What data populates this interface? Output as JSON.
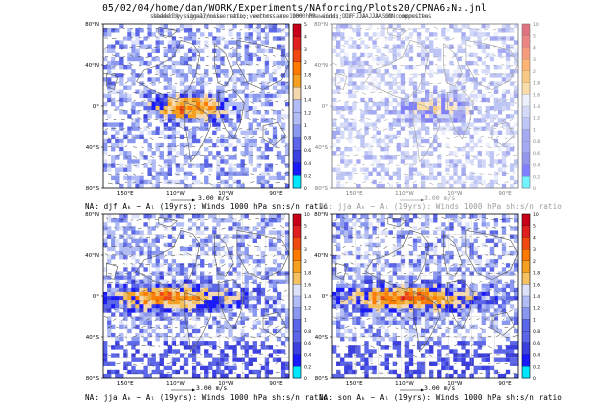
{
  "title": "05/02/04/home/dan/WORK/Experiments/NAforcing/Plots20/CPNA6₂N₂.jnl",
  "overstrike_text": "shaded by signal/noise ratio; vectors are 1000 hPa winds; DJF JJA JJA SON composites",
  "colors": {
    "low": [
      "#00e6ff",
      "#1a1aff",
      "#3d40e0",
      "#5c66e8",
      "#8a98f0",
      "#b3bdf5",
      "#dde2fa"
    ],
    "high": [
      "#f5d8b0",
      "#f5c060",
      "#f5a020",
      "#ff7a00",
      "#f04a10",
      "#e02020",
      "#c80018"
    ],
    "land": "#555555",
    "vector": "#3a3a3a"
  },
  "chart_data": [
    {
      "type": "heatmap",
      "caption": "NA: djf Aₖ − Aₗ (19yrs): Winds 1000 hPa sn:s/n ratio",
      "colorbar_ticks": [
        "5",
        "4",
        "3",
        "2",
        "1.8",
        "1.6",
        "1.4",
        "1.2",
        "1",
        "0.8",
        "0.6",
        "0.4",
        "0.2",
        "0"
      ],
      "y_ticks": [
        "80°S",
        "40°S",
        "0°",
        "40°N",
        "80°N"
      ],
      "x_ticks": [
        "150°E",
        "110°W",
        "10°W",
        "90°E"
      ],
      "vector_ref": "3.00 m/s",
      "grid": false
    },
    {
      "type": "heatmap",
      "caption": "NA: jja Aₖ − Aₗ (19yrs): Winds 1000 hPa sh:s/n ratio",
      "colorbar_ticks": [
        "10",
        "5",
        "4",
        "3",
        "2",
        "1.8",
        "1.6",
        "1.4",
        "1.2",
        "1",
        "0.8",
        "0.6",
        "0.4",
        "0.2",
        "0"
      ],
      "y_ticks": [
        "80°S",
        "40°S",
        "0°",
        "40°N",
        "80°N"
      ],
      "x_ticks": [
        "150°E",
        "110°W",
        "10°W",
        "90°E"
      ],
      "vector_ref": "3.00 m/s",
      "grid": false
    },
    {
      "type": "heatmap",
      "caption": "NA: jja Aₖ − Aₗ (19yrs): Winds 1000 hPa sh:s/n ratio",
      "colorbar_ticks": [
        "10",
        "5",
        "4",
        "3",
        "2",
        "1.8",
        "1.6",
        "1.4",
        "1.2",
        "1",
        "0.8",
        "0.6",
        "0.4",
        "0.2",
        "0"
      ],
      "y_ticks": [
        "80°S",
        "40°S",
        "0°",
        "40°N",
        "80°N"
      ],
      "x_ticks": [
        "150°E",
        "110°W",
        "10°W",
        "90°E"
      ],
      "vector_ref": "3.00 m/s",
      "grid": true
    },
    {
      "type": "heatmap",
      "caption": "NA: son Aₖ − Aₗ (19yrs): Winds 1000 hPa sh:s/n ratio",
      "colorbar_ticks": [
        "10",
        "5",
        "4",
        "3",
        "2",
        "1.8",
        "1.6",
        "1.4",
        "1.2",
        "1",
        "0.8",
        "0.6",
        "0.4",
        "0.2",
        "0"
      ],
      "y_ticks": [
        "80°S",
        "40°S",
        "0°",
        "40°N",
        "80°N"
      ],
      "x_ticks": [
        "150°E",
        "110°W",
        "10°W",
        "90°E"
      ],
      "vector_ref": "3.00 m/s",
      "grid": true
    }
  ]
}
